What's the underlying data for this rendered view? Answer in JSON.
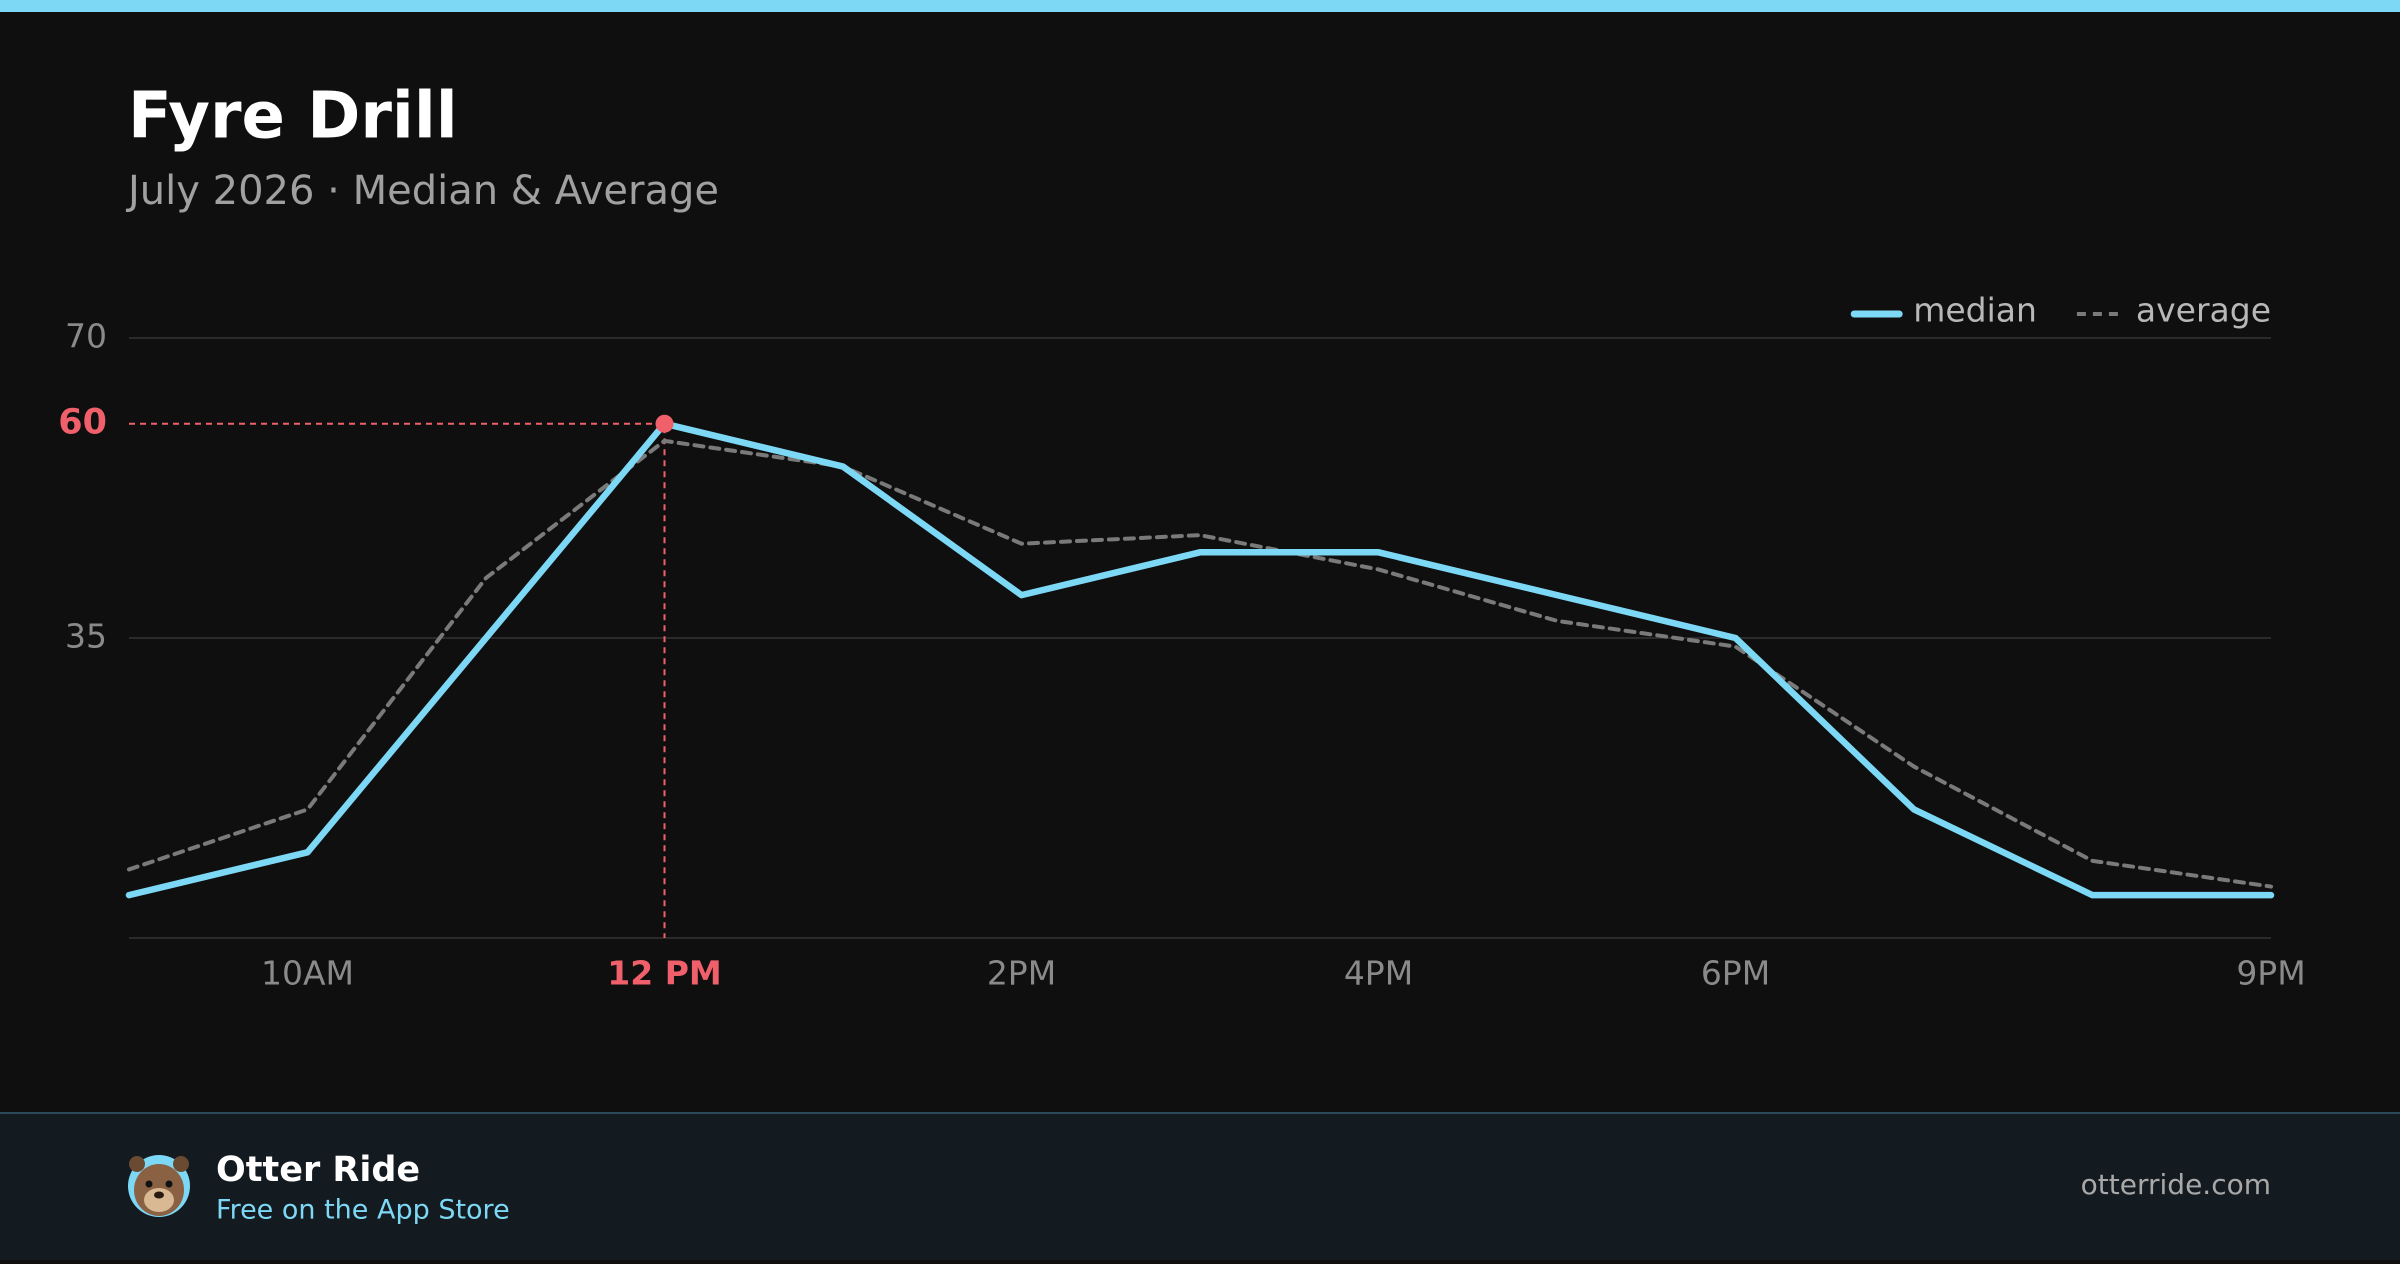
{
  "chart_data": {
    "type": "line",
    "title": "Fyre Drill",
    "subtitle": "July 2026 · Median & Average",
    "categories": [
      null,
      "10AM",
      null,
      "12 PM",
      null,
      "2PM",
      null,
      "4PM",
      null,
      "6PM",
      null,
      null,
      "9PM"
    ],
    "series": [
      {
        "name": "median",
        "color": "#7dd8f5",
        "values": [
          5,
          10,
          35,
          60,
          55,
          40,
          45,
          45,
          40,
          35,
          15,
          5,
          5
        ]
      },
      {
        "name": "average",
        "color": "#7a7a7a",
        "dashed": true,
        "values": [
          8,
          15,
          42,
          58,
          55,
          46,
          47,
          43,
          37,
          34,
          20,
          9,
          6
        ]
      }
    ],
    "ylim": [
      0,
      70
    ],
    "yticks": [
      35,
      70
    ],
    "grid": true,
    "legend": "top-right",
    "highlight_index": 3,
    "highlight_color": "#f0606a"
  },
  "footer": {
    "app_name": "Otter Ride",
    "tagline": "Free on the App Store",
    "site": "otterride.com"
  }
}
